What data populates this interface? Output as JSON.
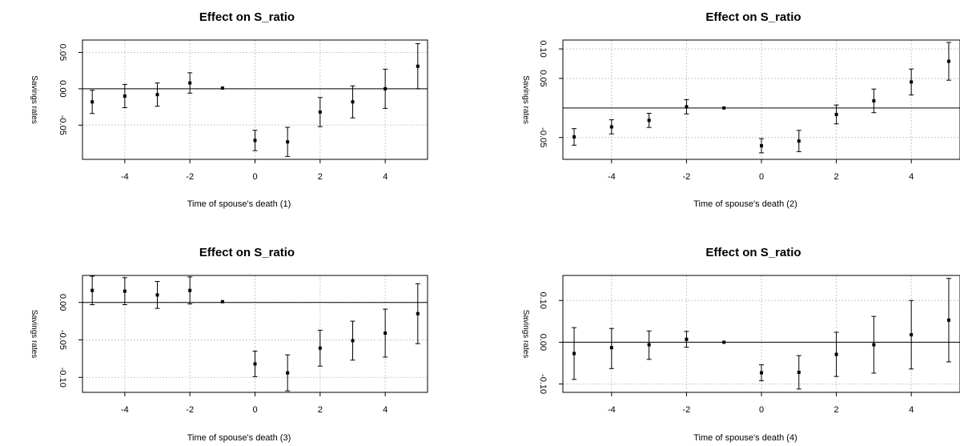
{
  "chart_data": [
    {
      "type": "scatter",
      "title": "Effect on S_ratio",
      "xlabel": "Time of spouse's death (1)",
      "ylabel": "Savings rates",
      "xlim": [
        -5.3,
        5.3
      ],
      "ylim": [
        -0.097,
        0.067
      ],
      "x_ticks": [
        -4,
        -2,
        0,
        2,
        4
      ],
      "x_tick_labels": [
        "-4",
        "-2",
        "0",
        "2",
        "4"
      ],
      "y_ticks": [
        -0.05,
        0.0,
        0.05
      ],
      "y_tick_labels": [
        "-0.05",
        "0.00",
        "0.05"
      ],
      "grid": true,
      "zero_line": true,
      "points": [
        {
          "x": -5,
          "y": -0.018,
          "lo": -0.034,
          "hi": -0.002
        },
        {
          "x": -4,
          "y": -0.01,
          "lo": -0.026,
          "hi": 0.006
        },
        {
          "x": -3,
          "y": -0.008,
          "lo": -0.024,
          "hi": 0.008
        },
        {
          "x": -2,
          "y": 0.008,
          "lo": -0.006,
          "hi": 0.022
        },
        {
          "x": -1,
          "y": 0.001,
          "lo": 0.001,
          "hi": 0.001
        },
        {
          "x": 0,
          "y": -0.071,
          "lo": -0.085,
          "hi": -0.057
        },
        {
          "x": 1,
          "y": -0.073,
          "lo": -0.093,
          "hi": -0.053
        },
        {
          "x": 2,
          "y": -0.032,
          "lo": -0.052,
          "hi": -0.012
        },
        {
          "x": 3,
          "y": -0.018,
          "lo": -0.04,
          "hi": 0.004
        },
        {
          "x": 4,
          "y": 0.0,
          "lo": -0.027,
          "hi": 0.027
        },
        {
          "x": 5,
          "y": 0.031,
          "lo": 0.0,
          "hi": 0.062
        }
      ]
    },
    {
      "type": "scatter",
      "title": "Effect on S_ratio",
      "xlabel": "Time of spouse's death (2)",
      "ylabel": "Savings rates",
      "xlim": [
        -5.3,
        5.3
      ],
      "ylim": [
        -0.087,
        0.115
      ],
      "x_ticks": [
        -4,
        -2,
        0,
        2,
        4
      ],
      "x_tick_labels": [
        "-4",
        "-2",
        "0",
        "2",
        "4"
      ],
      "y_ticks": [
        -0.05,
        0.05,
        0.1
      ],
      "y_tick_labels": [
        "-0.05",
        "0.05",
        "0.10"
      ],
      "grid": true,
      "zero_line": true,
      "points": [
        {
          "x": -5,
          "y": -0.049,
          "lo": -0.063,
          "hi": -0.035
        },
        {
          "x": -4,
          "y": -0.032,
          "lo": -0.044,
          "hi": -0.02
        },
        {
          "x": -3,
          "y": -0.021,
          "lo": -0.033,
          "hi": -0.009
        },
        {
          "x": -2,
          "y": 0.002,
          "lo": -0.01,
          "hi": 0.014
        },
        {
          "x": -1,
          "y": 0.0,
          "lo": 0.0,
          "hi": 0.0
        },
        {
          "x": 0,
          "y": -0.064,
          "lo": -0.076,
          "hi": -0.052
        },
        {
          "x": 1,
          "y": -0.056,
          "lo": -0.074,
          "hi": -0.038
        },
        {
          "x": 2,
          "y": -0.011,
          "lo": -0.027,
          "hi": 0.005
        },
        {
          "x": 3,
          "y": 0.012,
          "lo": -0.008,
          "hi": 0.032
        },
        {
          "x": 4,
          "y": 0.044,
          "lo": 0.022,
          "hi": 0.066
        },
        {
          "x": 5,
          "y": 0.079,
          "lo": 0.047,
          "hi": 0.111
        }
      ]
    },
    {
      "type": "scatter",
      "title": "Effect on S_ratio",
      "xlabel": "Time of spouse's death (3)",
      "ylabel": "Savings rates",
      "xlim": [
        -5.3,
        5.3
      ],
      "ylim": [
        -0.12,
        0.036
      ],
      "x_ticks": [
        -4,
        -2,
        0,
        2,
        4
      ],
      "x_tick_labels": [
        "-4",
        "-2",
        "0",
        "2",
        "4"
      ],
      "y_ticks": [
        -0.1,
        -0.05,
        0.0
      ],
      "y_tick_labels": [
        "-0.10",
        "-0.05",
        "0.00"
      ],
      "grid": true,
      "zero_line": true,
      "points": [
        {
          "x": -5,
          "y": 0.016,
          "lo": -0.003,
          "hi": 0.035
        },
        {
          "x": -4,
          "y": 0.015,
          "lo": -0.003,
          "hi": 0.033
        },
        {
          "x": -3,
          "y": 0.01,
          "lo": -0.008,
          "hi": 0.028
        },
        {
          "x": -2,
          "y": 0.016,
          "lo": -0.002,
          "hi": 0.034
        },
        {
          "x": -1,
          "y": 0.001,
          "lo": 0.001,
          "hi": 0.001
        },
        {
          "x": 0,
          "y": -0.082,
          "lo": -0.099,
          "hi": -0.065
        },
        {
          "x": 1,
          "y": -0.094,
          "lo": -0.118,
          "hi": -0.07
        },
        {
          "x": 2,
          "y": -0.061,
          "lo": -0.085,
          "hi": -0.037
        },
        {
          "x": 3,
          "y": -0.051,
          "lo": -0.077,
          "hi": -0.025
        },
        {
          "x": 4,
          "y": -0.041,
          "lo": -0.073,
          "hi": -0.009
        },
        {
          "x": 5,
          "y": -0.015,
          "lo": -0.055,
          "hi": 0.025
        }
      ]
    },
    {
      "type": "scatter",
      "title": "Effect on S_ratio",
      "xlabel": "Time of spouse's death (4)",
      "ylabel": "Savings rates",
      "xlim": [
        -5.3,
        5.3
      ],
      "ylim": [
        -0.12,
        0.16
      ],
      "x_ticks": [
        -4,
        -2,
        0,
        2,
        4
      ],
      "x_tick_labels": [
        "-4",
        "-2",
        "0",
        "2",
        "4"
      ],
      "y_ticks": [
        -0.1,
        0.0,
        0.1
      ],
      "y_tick_labels": [
        "-0.10",
        "0.00",
        "0.10"
      ],
      "grid": true,
      "zero_line": true,
      "points": [
        {
          "x": -5,
          "y": -0.027,
          "lo": -0.089,
          "hi": 0.035
        },
        {
          "x": -4,
          "y": -0.013,
          "lo": -0.063,
          "hi": 0.033
        },
        {
          "x": -3,
          "y": -0.006,
          "lo": -0.041,
          "hi": 0.027
        },
        {
          "x": -2,
          "y": 0.007,
          "lo": -0.012,
          "hi": 0.026
        },
        {
          "x": -1,
          "y": 0.0,
          "lo": 0.0,
          "hi": 0.0
        },
        {
          "x": 0,
          "y": -0.073,
          "lo": -0.092,
          "hi": -0.054
        },
        {
          "x": 1,
          "y": -0.072,
          "lo": -0.112,
          "hi": -0.032
        },
        {
          "x": 2,
          "y": -0.029,
          "lo": -0.082,
          "hi": 0.024
        },
        {
          "x": 3,
          "y": -0.006,
          "lo": -0.074,
          "hi": 0.062
        },
        {
          "x": 4,
          "y": 0.018,
          "lo": -0.064,
          "hi": 0.1
        },
        {
          "x": 5,
          "y": 0.053,
          "lo": -0.047,
          "hi": 0.153
        }
      ]
    }
  ]
}
